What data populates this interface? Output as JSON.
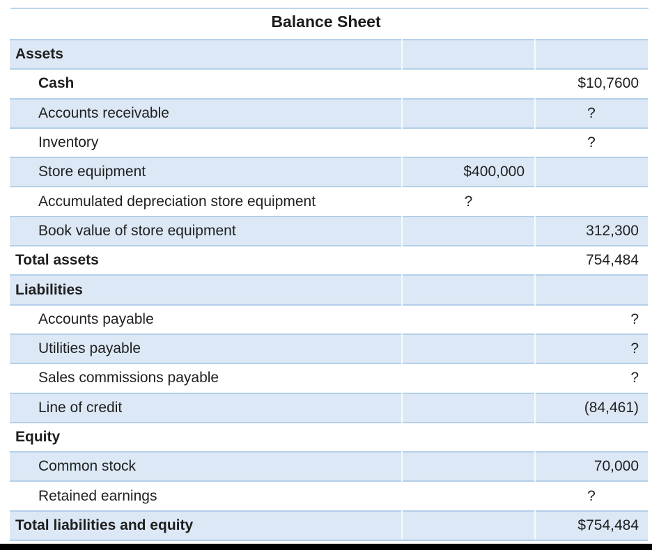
{
  "title": "Balance Sheet",
  "colors": {
    "row_fill": "#dce8f5",
    "row_border": "#b4cfe9",
    "top_rule": "#bdd7ee",
    "bottom_bar": "#000000",
    "text": "#1f1f1f"
  },
  "table": {
    "rows": [
      {
        "label": "Assets",
        "middle": "",
        "amount": ""
      },
      {
        "label": "Cash",
        "middle": "",
        "amount": "$10,7600"
      },
      {
        "label": "Accounts receivable",
        "middle": "",
        "amount": "?"
      },
      {
        "label": "Inventory",
        "middle": "",
        "amount": "?"
      },
      {
        "label": "Store equipment",
        "middle": "$400,000",
        "amount": ""
      },
      {
        "label": "Accumulated depreciation store equipment",
        "middle": "?",
        "amount": ""
      },
      {
        "label": "Book value of store equipment",
        "middle": "",
        "amount": "312,300"
      },
      {
        "label": "Total assets",
        "middle": "",
        "amount": "754,484"
      },
      {
        "label": "Liabilities",
        "middle": "",
        "amount": ""
      },
      {
        "label": "Accounts payable",
        "middle": "",
        "amount": "?"
      },
      {
        "label": "Utilities payable",
        "middle": "",
        "amount": "?"
      },
      {
        "label": "Sales commissions payable",
        "middle": "",
        "amount": "?"
      },
      {
        "label": "Line of credit",
        "middle": "",
        "amount": "(84,461)"
      },
      {
        "label": "Equity",
        "middle": "",
        "amount": ""
      },
      {
        "label": "Common stock",
        "middle": "",
        "amount": "70,000"
      },
      {
        "label": "Retained earnings",
        "middle": "",
        "amount": "?"
      },
      {
        "label": "Total liabilities and equity",
        "middle": "",
        "amount": "$754,484"
      }
    ]
  }
}
